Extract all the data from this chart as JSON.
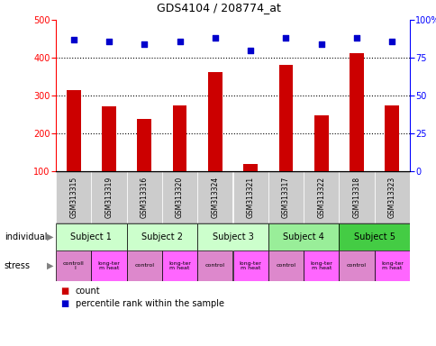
{
  "title": "GDS4104 / 208774_at",
  "samples": [
    "GSM313315",
    "GSM313319",
    "GSM313316",
    "GSM313320",
    "GSM313324",
    "GSM313321",
    "GSM313317",
    "GSM313322",
    "GSM313318",
    "GSM313323"
  ],
  "counts": [
    315,
    272,
    238,
    275,
    362,
    120,
    380,
    248,
    412,
    275
  ],
  "percentile_ranks": [
    87,
    86,
    84,
    86,
    88,
    80,
    88,
    84,
    88,
    86
  ],
  "ylim_left": [
    100,
    500
  ],
  "ylim_right": [
    0,
    100
  ],
  "yticks_left": [
    100,
    200,
    300,
    400,
    500
  ],
  "yticks_right": [
    0,
    25,
    50,
    75,
    100
  ],
  "subjects": [
    {
      "label": "Subject 1",
      "start": 0,
      "end": 2,
      "color": "#ccffcc"
    },
    {
      "label": "Subject 2",
      "start": 2,
      "end": 4,
      "color": "#ccffcc"
    },
    {
      "label": "Subject 3",
      "start": 4,
      "end": 6,
      "color": "#ccffcc"
    },
    {
      "label": "Subject 4",
      "start": 6,
      "end": 8,
      "color": "#99ee99"
    },
    {
      "label": "Subject 5",
      "start": 8,
      "end": 10,
      "color": "#44cc44"
    }
  ],
  "stress_labels": [
    "controll\nl",
    "long-ter\nm heat",
    "control",
    "long-ter\nm heat",
    "control",
    "long-ter\nm heat",
    "control",
    "long-ter\nm heat",
    "control",
    "long-ter\nm heat"
  ],
  "stress_display": [
    "controll\n l",
    "long-ter\nm heat",
    "control",
    "long-ter\nm heat",
    "control",
    "long-ter\nm heat",
    "control",
    "long-ter\nm heat",
    "control",
    "long-ter\nm heat"
  ],
  "stress_colors_alt": [
    "#dd88dd",
    "#ff66ff",
    "#dd88dd",
    "#ff66ff",
    "#dd88dd",
    "#ff66ff",
    "#dd88dd",
    "#ff66ff",
    "#dd88dd",
    "#ff66ff"
  ],
  "bar_color": "#cc0000",
  "dot_color": "#0000cc",
  "background_color": "#ffffff",
  "sample_bg_color": "#cccccc",
  "stress_control_color": "#dd88dd",
  "stress_heat_color": "#ff55ff"
}
